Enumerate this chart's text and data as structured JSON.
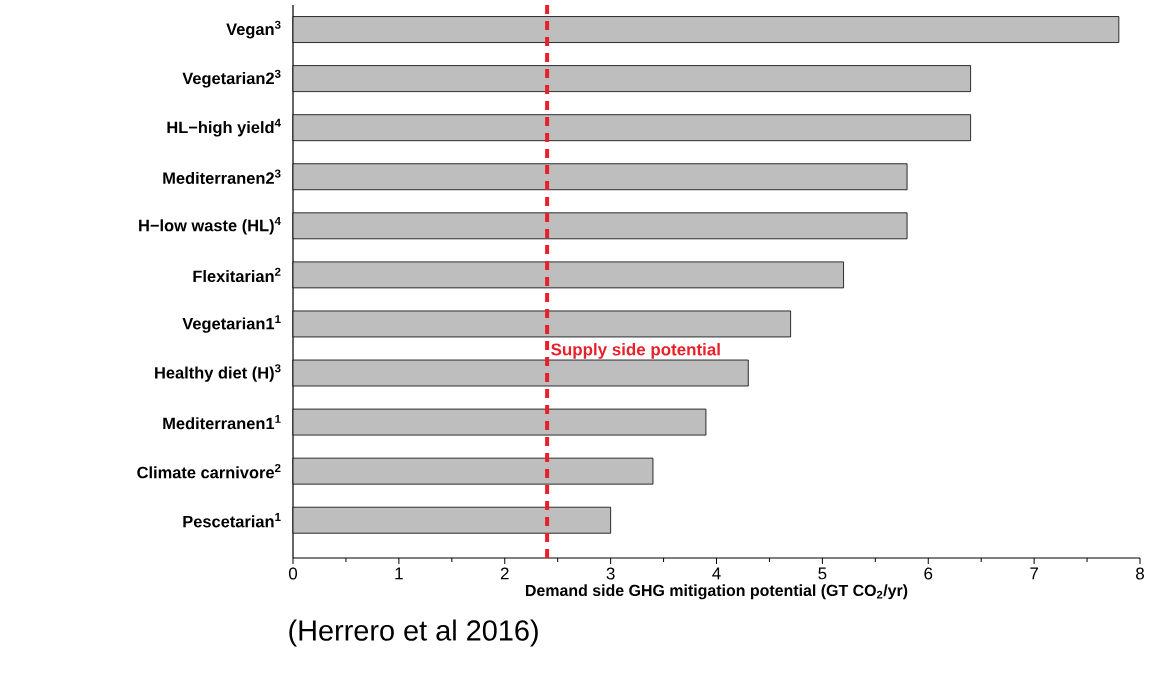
{
  "chart_data": {
    "type": "bar",
    "orientation": "horizontal",
    "categories": [
      "Vegan$^{3}$",
      "Vegetarian2$^{3}$",
      "HL−high yield$^{4}$",
      "Mediterranen2$^{3}$",
      "H−low waste (HL)$^{4}$",
      "Flexitarian$^{2}$",
      "Vegetarian1$^{1}$",
      "Healthy diet (H)$^{3}$",
      "Mediterranen1$^{1}$",
      "Climate carnivore$^{2}$",
      "Pescetarian$^{1}$"
    ],
    "values": [
      7.8,
      6.4,
      6.4,
      5.8,
      5.8,
      5.2,
      4.7,
      4.3,
      3.9,
      3.4,
      3.0
    ],
    "color": "#bebebe",
    "xlim": [
      0,
      8
    ],
    "xticks": [
      0,
      1,
      2,
      3,
      4,
      5,
      6,
      7,
      8
    ],
    "xlabel": "Demand side GHG mitigation potential  (GT CO$_{2}$/yr)",
    "ref_lines": [
      {
        "axis": "x",
        "value": 2.4,
        "label": "Supply side potential",
        "color": "#e8202a",
        "line_style": "dashed"
      }
    ],
    "annotations": [
      "(Herrero et al 2016)"
    ]
  }
}
